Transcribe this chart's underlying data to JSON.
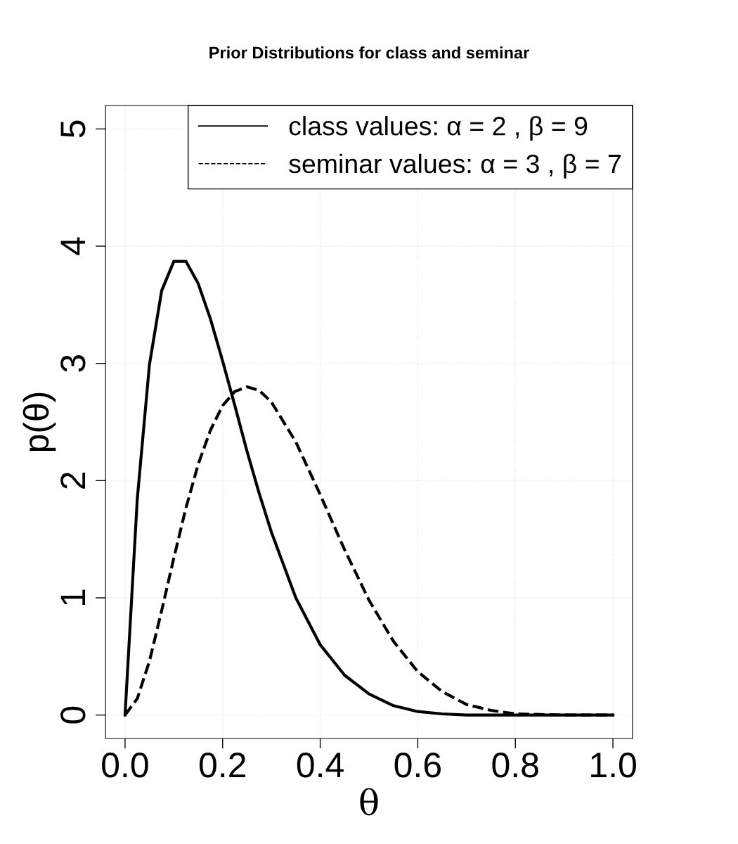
{
  "chart_data": {
    "type": "line",
    "title": "Prior Distributions for class and seminar",
    "xlabel": "θ",
    "ylabel": "p(θ)",
    "x": [
      0,
      0.025,
      0.05,
      0.075,
      0.1,
      0.125,
      0.15,
      0.175,
      0.2,
      0.225,
      0.25,
      0.275,
      0.3,
      0.35,
      0.4,
      0.45,
      0.5,
      0.55,
      0.6,
      0.65,
      0.7,
      0.75,
      0.8,
      0.9,
      1.0
    ],
    "series": [
      {
        "name": "class values: α = 2 , β = 9",
        "color": "#000000",
        "line_style": "solid",
        "values": [
          0,
          1.84,
          2.99,
          3.62,
          3.87,
          3.87,
          3.68,
          3.38,
          3.02,
          2.64,
          2.25,
          1.89,
          1.56,
          1.0,
          0.6,
          0.34,
          0.18,
          0.08,
          0.03,
          0.01,
          0,
          0,
          0,
          0,
          0
        ]
      },
      {
        "name": "seminar values: α = 3 , β = 7",
        "color": "#000000",
        "line_style": "dashed",
        "values": [
          0,
          0.14,
          0.46,
          0.89,
          1.34,
          1.77,
          2.14,
          2.43,
          2.64,
          2.76,
          2.8,
          2.77,
          2.67,
          2.33,
          1.88,
          1.41,
          0.98,
          0.63,
          0.37,
          0.2,
          0.09,
          0.04,
          0.01,
          0,
          0
        ]
      }
    ],
    "xlim": [
      -0.04,
      1.04
    ],
    "ylim": [
      -0.2,
      5.2
    ],
    "xticks": [
      {
        "value": 0,
        "label": "0.0"
      },
      0.2,
      0.4,
      0.6,
      0.8,
      {
        "value": 1,
        "label": "1.0"
      }
    ],
    "yticks": [
      0,
      1,
      2,
      3,
      4,
      5
    ],
    "grid": true,
    "legend": "top right"
  }
}
